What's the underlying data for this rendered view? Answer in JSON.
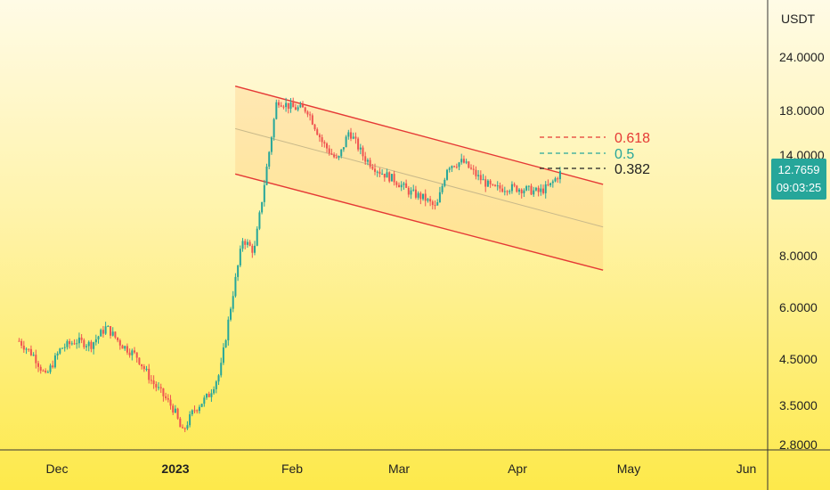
{
  "chart_data": {
    "type": "candlestick",
    "currency": "USDT",
    "y_scale": "log",
    "ylim": [
      2.7,
      30
    ],
    "y_ticks": [
      "24.0000",
      "18.0000",
      "14.0000",
      "8.0000",
      "6.0000",
      "4.5000",
      "3.5000",
      "2.8000"
    ],
    "x_ticks": [
      "Dec",
      "2023",
      "Feb",
      "Mar",
      "Apr",
      "May",
      "Jun"
    ],
    "last_price": "12.7659",
    "countdown": "09:03:25",
    "fib_levels": [
      {
        "label": "0.618",
        "color": "#e53935"
      },
      {
        "label": "0.5",
        "color": "#26a69a"
      },
      {
        "label": "0.382",
        "color": "#222222"
      }
    ],
    "channel": {
      "upper": [
        [
          "2023-01-17",
          20.5
        ],
        [
          "2023-04-24",
          11.9
        ]
      ],
      "middle": [
        [
          "2023-01-17",
          16.2
        ],
        [
          "2023-04-24",
          9.4
        ]
      ],
      "lower": [
        [
          "2023-01-17",
          12.6
        ],
        [
          "2023-04-24",
          7.4
        ]
      ]
    },
    "price_path": [
      [
        "2022-11-21",
        5.0
      ],
      [
        "2022-11-25",
        4.6
      ],
      [
        "2022-11-28",
        4.1
      ],
      [
        "2022-12-02",
        4.8
      ],
      [
        "2022-12-06",
        5.0
      ],
      [
        "2022-12-10",
        4.9
      ],
      [
        "2022-12-14",
        5.4
      ],
      [
        "2022-12-18",
        4.9
      ],
      [
        "2022-12-22",
        4.6
      ],
      [
        "2022-12-26",
        4.0
      ],
      [
        "2022-12-30",
        3.6
      ],
      [
        "2023-01-01",
        3.4
      ],
      [
        "2023-01-03",
        3.0
      ],
      [
        "2023-01-06",
        3.4
      ],
      [
        "2023-01-10",
        3.7
      ],
      [
        "2023-01-13",
        4.2
      ],
      [
        "2023-01-16",
        6.2
      ],
      [
        "2023-01-19",
        8.8
      ],
      [
        "2023-01-22",
        8.2
      ],
      [
        "2023-01-25",
        12.5
      ],
      [
        "2023-01-28",
        19.0
      ],
      [
        "2023-02-01",
        18.2
      ],
      [
        "2023-02-05",
        18.0
      ],
      [
        "2023-02-09",
        15.0
      ],
      [
        "2023-02-13",
        13.5
      ],
      [
        "2023-02-16",
        16.0
      ],
      [
        "2023-02-20",
        13.8
      ],
      [
        "2023-02-24",
        12.8
      ],
      [
        "2023-02-28",
        12.2
      ],
      [
        "2023-03-04",
        11.4
      ],
      [
        "2023-03-08",
        11.0
      ],
      [
        "2023-03-11",
        10.4
      ],
      [
        "2023-03-14",
        13.2
      ],
      [
        "2023-03-18",
        13.5
      ],
      [
        "2023-03-22",
        12.4
      ],
      [
        "2023-03-26",
        11.6
      ],
      [
        "2023-03-30",
        11.7
      ],
      [
        "2023-04-03",
        11.6
      ],
      [
        "2023-04-07",
        11.4
      ],
      [
        "2023-04-10",
        11.8
      ],
      [
        "2023-04-13",
        12.8
      ]
    ]
  }
}
